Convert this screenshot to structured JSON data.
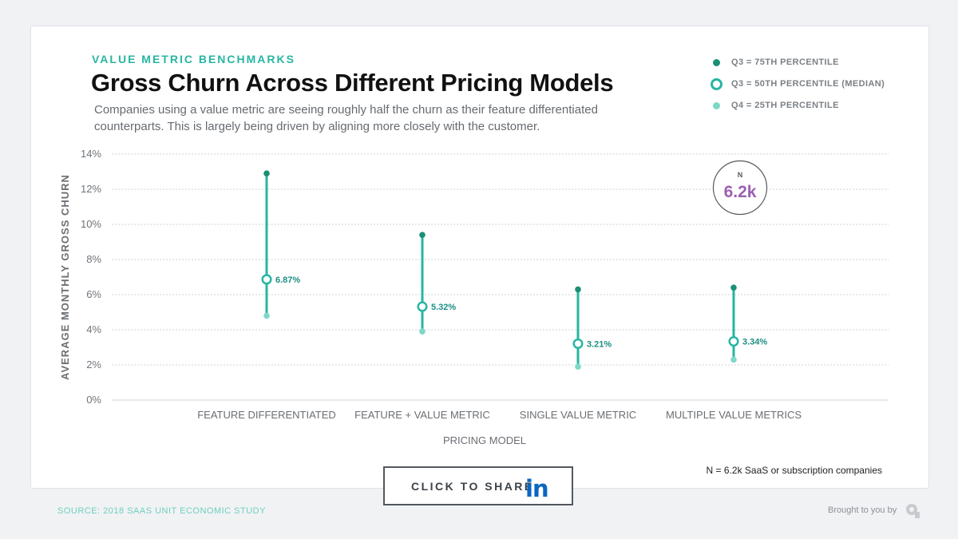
{
  "header": {
    "eyebrow": "VALUE METRIC BENCHMARKS",
    "title": "Gross Churn Across Different Pricing Models",
    "subtitle": "Companies using a value metric are seeing roughly half the churn as their feature differentiated counterparts. This is largely being driven by aligning more closely with the customer."
  },
  "legend": [
    {
      "label": "Q3 = 75TH PERCENTILE",
      "color": "#1a8f76",
      "marker": "dot"
    },
    {
      "label": "Q3 = 50TH PERCENTILE (MEDIAN)",
      "color": "#27b6a2",
      "marker": "ring"
    },
    {
      "label": "Q4 = 25TH PERCENTILE",
      "color": "#7ed8c6",
      "marker": "dot"
    }
  ],
  "badge": {
    "label": "N",
    "value": "6.2k"
  },
  "note": "N = 6.2k SaaS or subscription companies",
  "share": {
    "label": "CLICK TO SHARE",
    "icon": "linkedin-icon",
    "icon_text": "in"
  },
  "footer": {
    "source": "SOURCE: 2018 SAAS UNIT ECONOMIC STUDY",
    "credit": "Brought to you by",
    "logo": "profitwell-logo-icon"
  },
  "colors": {
    "accent": "#27b6a2",
    "q75": "#1a8f76",
    "q25": "#7ed8c6",
    "badge_value": "#9b5fb0"
  },
  "chart_data": {
    "type": "scatter",
    "xlabel": "PRICING MODEL",
    "ylabel": "AVERAGE MONTHLY GROSS CHURN",
    "ylim": [
      0,
      14
    ],
    "yticks": [
      0,
      2,
      4,
      6,
      8,
      10,
      12,
      14
    ],
    "ytick_labels": [
      "0%",
      "2%",
      "4%",
      "6%",
      "8%",
      "10%",
      "12%",
      "14%"
    ],
    "grid": true,
    "categories": [
      "FEATURE DIFFERENTIATED",
      "FEATURE + VALUE METRIC",
      "SINGLE VALUE METRIC",
      "MULTIPLE VALUE METRICS"
    ],
    "series": [
      {
        "name": "Q3 = 75TH PERCENTILE",
        "values": [
          12.9,
          9.4,
          6.3,
          6.4
        ]
      },
      {
        "name": "Q3 = 50TH PERCENTILE (MEDIAN)",
        "values": [
          6.87,
          5.32,
          3.21,
          3.34
        ]
      },
      {
        "name": "Q4 = 25TH PERCENTILE",
        "values": [
          4.8,
          3.9,
          1.9,
          2.3
        ]
      }
    ],
    "data_labels": [
      "6.87%",
      "5.32%",
      "3.21%",
      "3.34%"
    ]
  }
}
